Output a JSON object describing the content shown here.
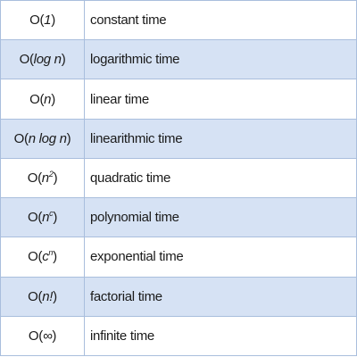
{
  "rows": [
    {
      "func": "O",
      "arg": "1",
      "name": "constant time"
    },
    {
      "func": "O",
      "arg": "log n",
      "name": "logarithmic time"
    },
    {
      "func": "O",
      "arg": "n",
      "name": "linear time"
    },
    {
      "func": "O",
      "arg": "n log n",
      "name": "linearithmic time"
    },
    {
      "func": "O",
      "arg": "n",
      "exp": "2",
      "name": "quadratic time"
    },
    {
      "func": "O",
      "arg": "n",
      "exp": "c",
      "name": "polynomial time"
    },
    {
      "func": "O",
      "arg": "c",
      "exp": "n",
      "name": "exponential time"
    },
    {
      "func": "O",
      "arg": "n!",
      "name": "factorial time"
    },
    {
      "func": "O",
      "arg": "∞",
      "name": "infinite time"
    }
  ]
}
